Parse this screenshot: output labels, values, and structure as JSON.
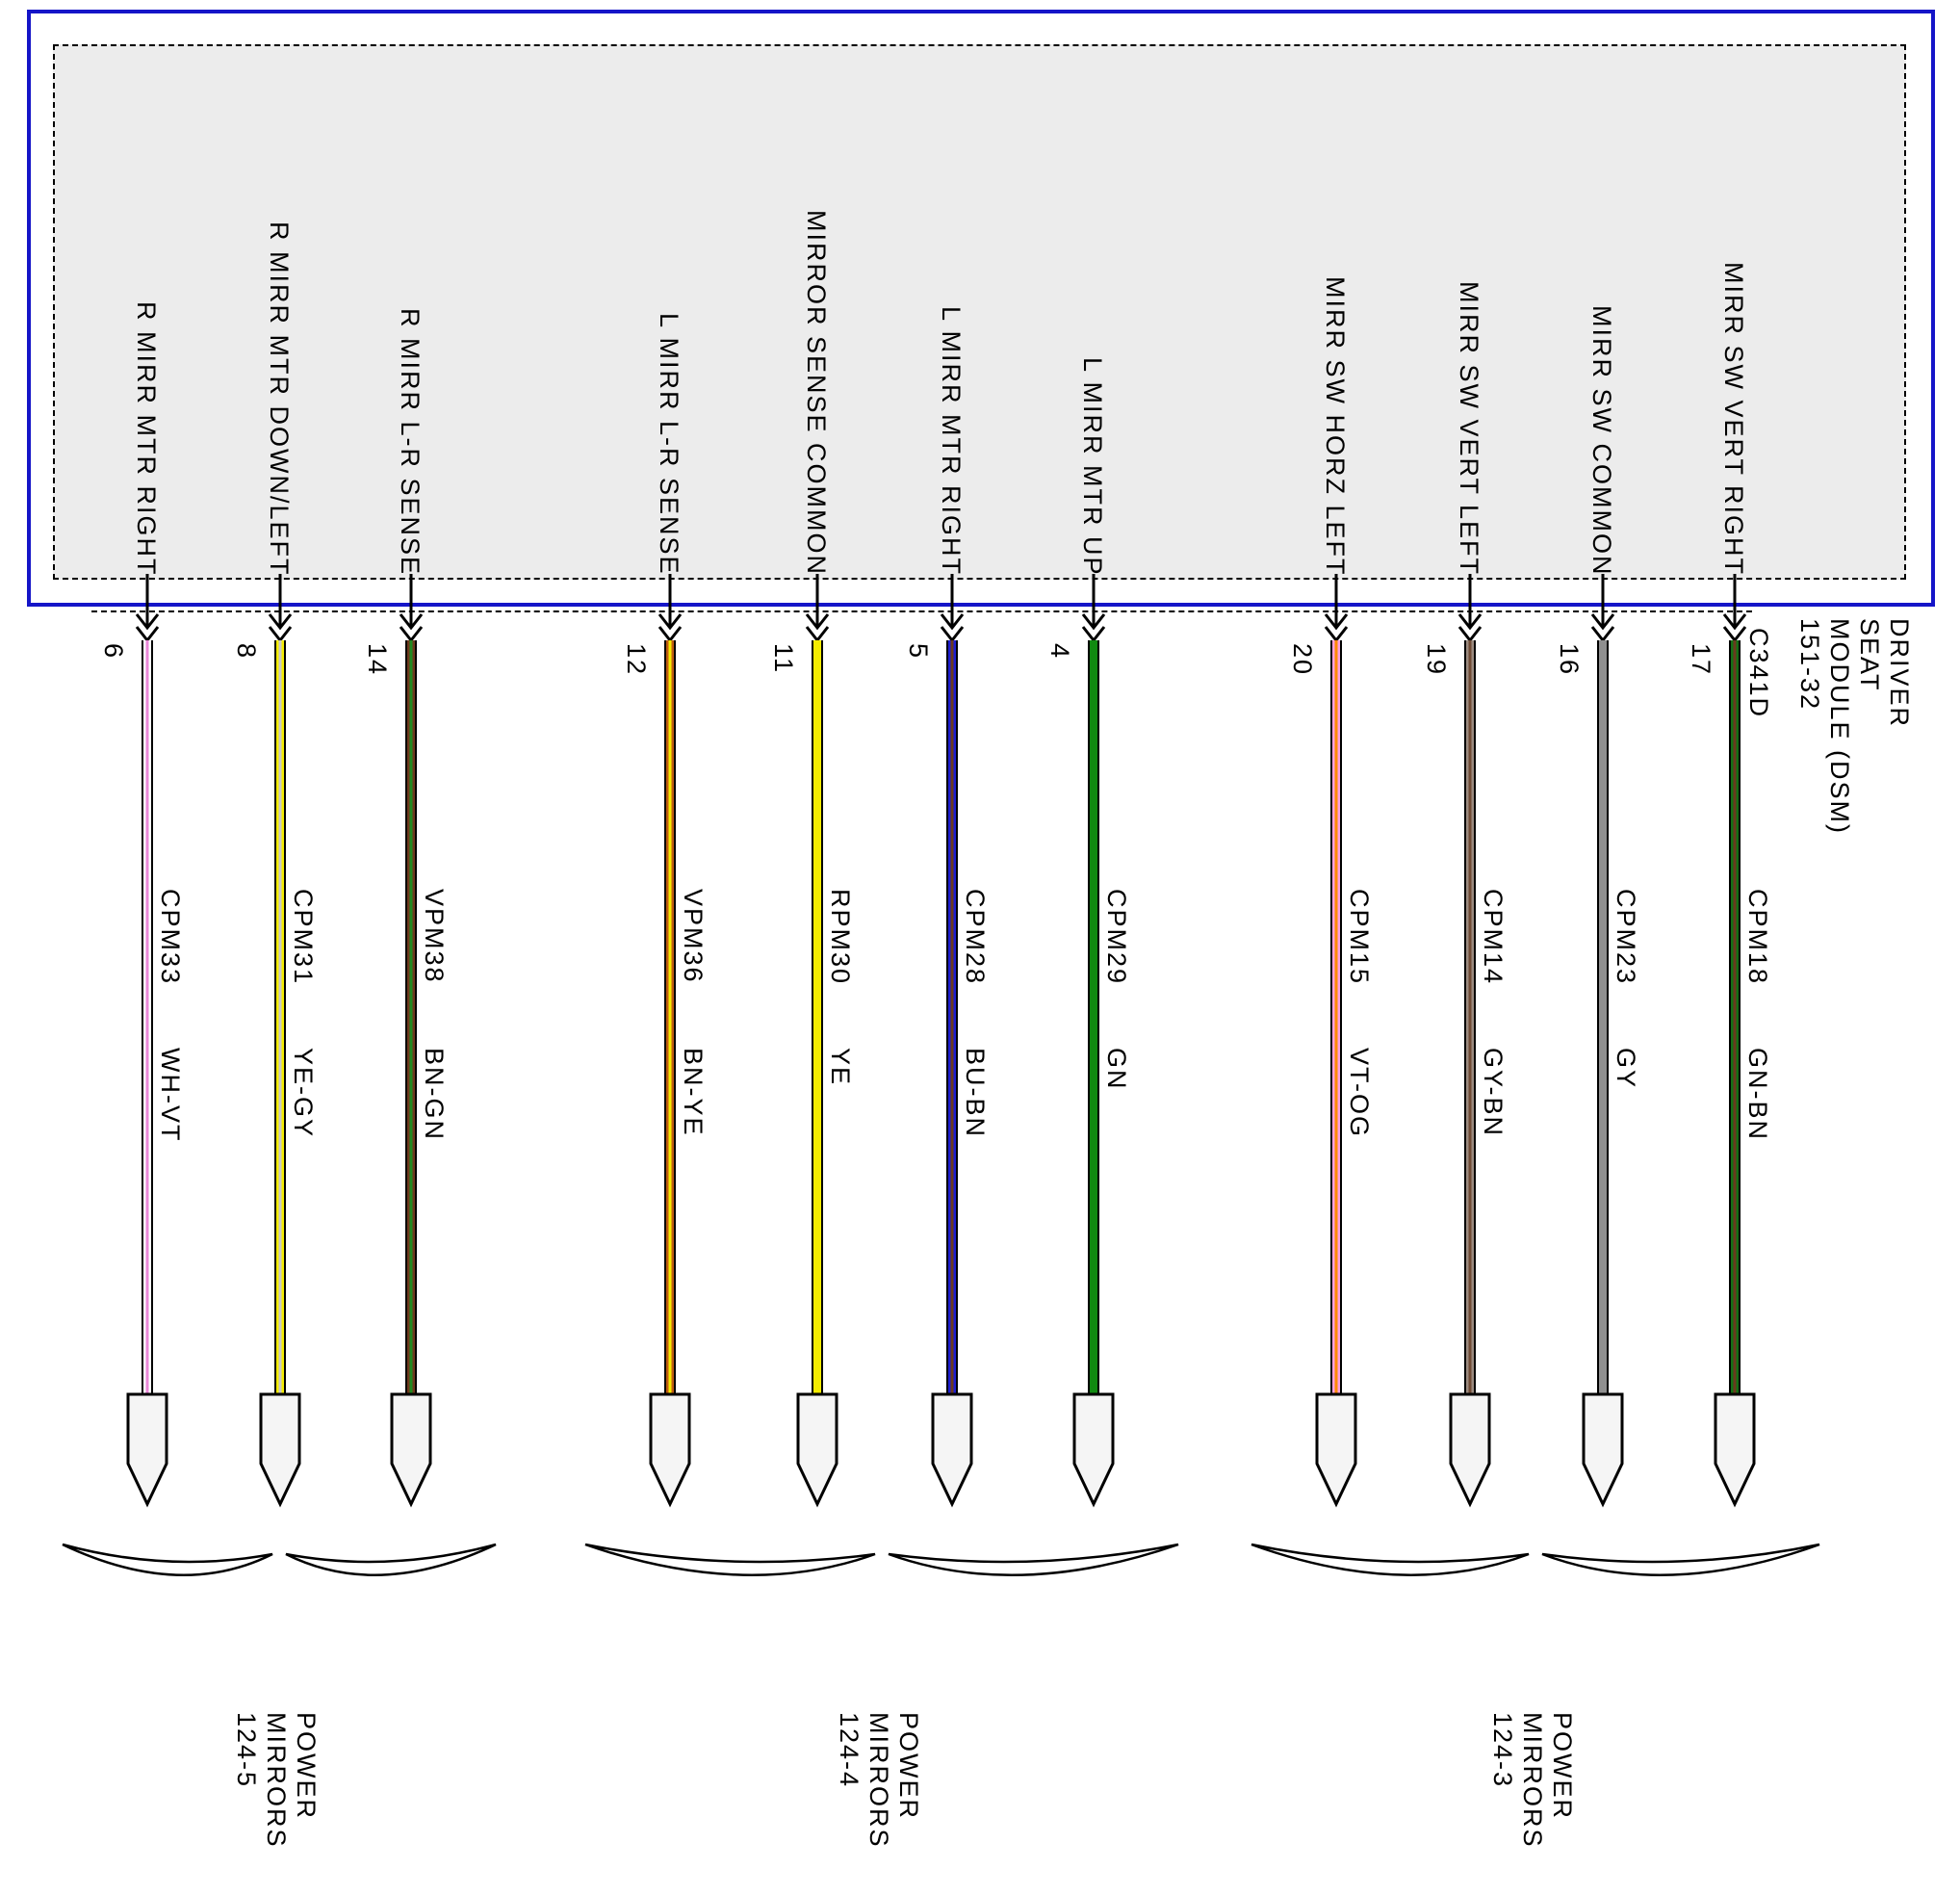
{
  "diagram": {
    "module": {
      "title_lines": [
        "DRIVER",
        "SEAT",
        "MODULE (DSM)",
        "151-32"
      ],
      "connector": "C341D",
      "box_border_color": "#1515c8",
      "inner_fill_color": "#ececec"
    },
    "pins": [
      {
        "pin": "6",
        "label": "R MIRR MTR RIGHT",
        "circuit": "CPM33",
        "color_code": "WH-VT",
        "wire_color": "#ffffff",
        "wire_stripe": "#ea86d8"
      },
      {
        "pin": "8",
        "label": "R MIRR MTR DOWN/LEFT",
        "circuit": "CPM31",
        "color_code": "YE-GY",
        "wire_color": "#f4ec00",
        "wire_stripe": "#c8c8c8"
      },
      {
        "pin": "14",
        "label": "R MIRR L-R SENSE",
        "circuit": "VPM38",
        "color_code": "BN-GN",
        "wire_color": "#6f3a1d",
        "wire_stripe": "#1f8a1f"
      },
      {
        "pin": "12",
        "label": "L MIRR L-R SENSE",
        "circuit": "VPM36",
        "color_code": "BN-YE",
        "wire_color": "#bf5c12",
        "wire_stripe": "#f4ec00"
      },
      {
        "pin": "11",
        "label": "MIRROR SENSE COMMON",
        "circuit": "RPM30",
        "color_code": "YE",
        "wire_color": "#f4ec00",
        "wire_stripe": null
      },
      {
        "pin": "5",
        "label": "L MIRR MTR RIGHT",
        "circuit": "CPM28",
        "color_code": "BU-BN",
        "wire_color": "#1f1fd0",
        "wire_stripe": "#6b3a1f"
      },
      {
        "pin": "4",
        "label": "L MIRR MTR UP",
        "circuit": "CPM29",
        "color_code": "GN",
        "wire_color": "#118a11",
        "wire_stripe": null
      },
      {
        "pin": "20",
        "label": "MIRR SW HORZ LEFT",
        "circuit": "CPM15",
        "color_code": "VT-OG",
        "wire_color": "#fda0e0",
        "wire_stripe": "#ff8a00"
      },
      {
        "pin": "19",
        "label": "MIRR SW VERT LEFT",
        "circuit": "CPM14",
        "color_code": "GY-BN",
        "wire_color": "#9b8b80",
        "wire_stripe": "#6f4a33"
      },
      {
        "pin": "16",
        "label": "MIRR SW COMMON",
        "circuit": "CPM23",
        "color_code": "GY",
        "wire_color": "#8f8f8f",
        "wire_stripe": null
      },
      {
        "pin": "17",
        "label": "MIRR SW VERT RIGHT",
        "circuit": "CPM18",
        "color_code": "GN-BN",
        "wire_color": "#157015",
        "wire_stripe": "#6b3a1f"
      }
    ],
    "groups": [
      {
        "label_lines": [
          "POWER",
          "MIRRORS",
          "124-5"
        ],
        "first": 0,
        "last": 2
      },
      {
        "label_lines": [
          "POWER",
          "MIRRORS",
          "124-4"
        ],
        "first": 3,
        "last": 6
      },
      {
        "label_lines": [
          "POWER",
          "MIRRORS",
          "124-3"
        ],
        "first": 7,
        "last": 10
      }
    ]
  }
}
